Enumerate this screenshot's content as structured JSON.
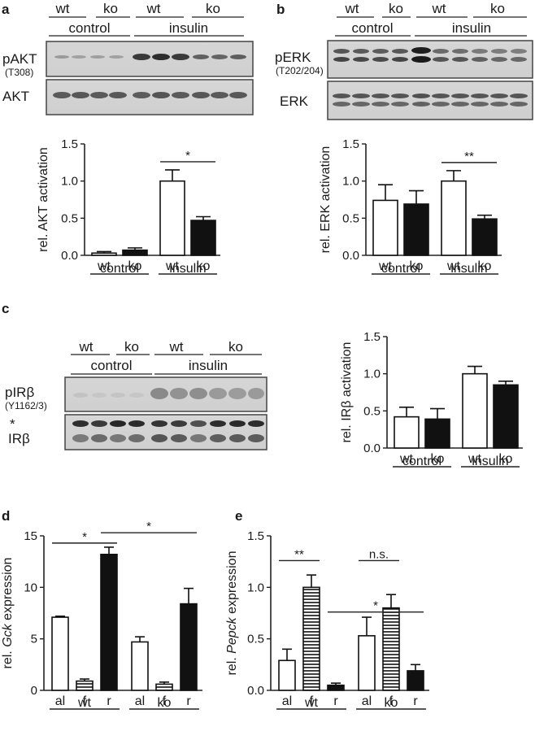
{
  "blots": {
    "a": {
      "letter": "a",
      "groups": {
        "wt": "wt",
        "ko": "ko",
        "control": "control",
        "insulin": "insulin"
      },
      "rows": [
        {
          "label": "pAKT",
          "sub": "(T308)"
        },
        {
          "label": "AKT",
          "sub": ""
        }
      ]
    },
    "b": {
      "letter": "b",
      "groups": {
        "wt": "wt",
        "ko": "ko",
        "control": "control",
        "insulin": "insulin"
      },
      "rows": [
        {
          "label": "pERK",
          "sub": "(T202/204)"
        },
        {
          "label": "ERK",
          "sub": ""
        }
      ]
    },
    "c": {
      "letter": "c",
      "groups": {
        "wt": "wt",
        "ko": "ko",
        "control": "control",
        "insulin": "insulin"
      },
      "rows": [
        {
          "label": "pIRβ",
          "sub": "(Y1162/3)"
        },
        {
          "label": "IRβ",
          "sub": "",
          "mark": "*"
        }
      ]
    }
  },
  "panel_letters": {
    "d": "d",
    "e": "e"
  },
  "chart_data": [
    {
      "type": "bar",
      "panel": "a",
      "ylabel": "rel. AKT activation",
      "ylim": [
        0,
        1.5
      ],
      "yticks": [
        "0.0",
        "0.5",
        "1.0",
        "1.5"
      ],
      "categories": [
        "wt",
        "ko",
        "wt",
        "ko"
      ],
      "groups": [
        "control",
        "insulin"
      ],
      "values": [
        0.03,
        0.07,
        1.0,
        0.47
      ],
      "errors": [
        0.02,
        0.03,
        0.15,
        0.05
      ],
      "fills": [
        "#ffffff",
        "#111111",
        "#ffffff",
        "#111111"
      ],
      "brackets": [
        {
          "from": 2,
          "to": 3,
          "label": "*"
        }
      ]
    },
    {
      "type": "bar",
      "panel": "b",
      "ylabel": "rel. ERK activation",
      "ylim": [
        0,
        1.5
      ],
      "yticks": [
        "0.0",
        "0.5",
        "1.0",
        "1.5"
      ],
      "categories": [
        "wt",
        "ko",
        "wt",
        "ko"
      ],
      "groups": [
        "control",
        "insulin"
      ],
      "values": [
        0.74,
        0.69,
        1.0,
        0.49
      ],
      "errors": [
        0.21,
        0.18,
        0.14,
        0.05
      ],
      "fills": [
        "#ffffff",
        "#111111",
        "#ffffff",
        "#111111"
      ],
      "brackets": [
        {
          "from": 2,
          "to": 3,
          "label": "**"
        }
      ]
    },
    {
      "type": "bar",
      "panel": "c",
      "ylabel": "rel. IRβ activation",
      "ylim": [
        0,
        1.5
      ],
      "yticks": [
        "0.0",
        "0.5",
        "1.0",
        "1.5"
      ],
      "categories": [
        "wt",
        "ko",
        "wt",
        "ko"
      ],
      "groups": [
        "control",
        "insulin"
      ],
      "values": [
        0.42,
        0.39,
        1.0,
        0.85
      ],
      "errors": [
        0.13,
        0.14,
        0.1,
        0.05
      ],
      "fills": [
        "#ffffff",
        "#111111",
        "#ffffff",
        "#111111"
      ],
      "brackets": []
    },
    {
      "type": "bar",
      "panel": "d",
      "ylabel_prefix": "rel. ",
      "ylabel_gene": "Gck",
      "ylabel_suffix": " expression",
      "ylim": [
        0,
        15
      ],
      "yticks": [
        "0",
        "5",
        "10",
        "15"
      ],
      "categories": [
        "al",
        "f",
        "r",
        "al",
        "f",
        "r"
      ],
      "groups": [
        "wt",
        "ko"
      ],
      "values": [
        7.1,
        0.9,
        13.2,
        4.7,
        0.6,
        8.4
      ],
      "errors": [
        0.1,
        0.2,
        0.7,
        0.5,
        0.2,
        1.5
      ],
      "fills": [
        "#ffffff",
        "stripe",
        "#111111",
        "#ffffff",
        "stripe",
        "#111111"
      ],
      "brackets": [
        {
          "from": 0,
          "to": 2,
          "label": "*",
          "y": 14.3
        },
        {
          "from": 2,
          "to": 5,
          "label": "*",
          "y": 15.3
        }
      ]
    },
    {
      "type": "bar",
      "panel": "e",
      "ylabel_prefix": "rel. ",
      "ylabel_gene": "Pepck",
      "ylabel_suffix": " expression",
      "ylim": [
        0,
        1.5
      ],
      "yticks": [
        "0.0",
        "0.5",
        "1.0",
        "1.5"
      ],
      "categories": [
        "al",
        "f",
        "r",
        "al",
        "f",
        "r"
      ],
      "groups": [
        "wt",
        "ko"
      ],
      "values": [
        0.29,
        1.0,
        0.05,
        0.53,
        0.8,
        0.19
      ],
      "errors": [
        0.11,
        0.12,
        0.02,
        0.18,
        0.13,
        0.06
      ],
      "fills": [
        "#ffffff",
        "stripe",
        "#111111",
        "#ffffff",
        "stripe",
        "#111111"
      ],
      "brackets": [
        {
          "from": 0,
          "to": 1,
          "label": "**",
          "y": 1.26
        },
        {
          "from": 3,
          "to": 4,
          "label": "n.s.",
          "y": 1.26
        },
        {
          "from": 2,
          "to": 5,
          "label": "*",
          "y": 0.76
        }
      ]
    }
  ]
}
